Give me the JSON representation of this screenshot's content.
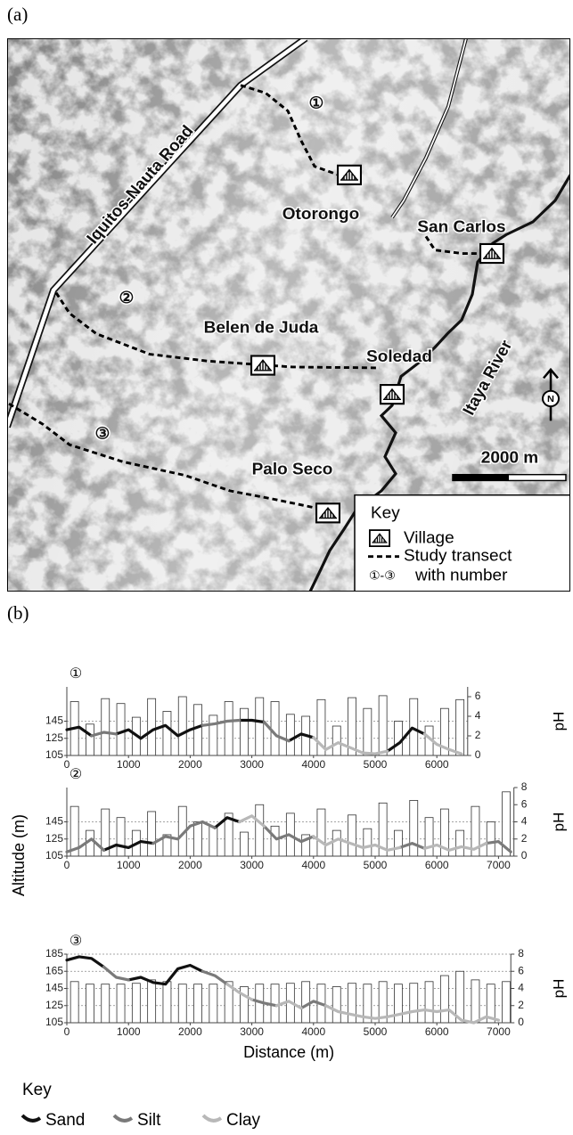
{
  "panel_a": {
    "label": "(a)",
    "map": {
      "road": "Iquitos-Nauta Road",
      "villages": [
        "Otorongo",
        "San Carlos",
        "Belen de Juda",
        "Soledad",
        "Palo Seco"
      ],
      "river": "Itaya River",
      "transects": [
        "①",
        "②",
        "③"
      ],
      "north": "N",
      "scale": "2000 m",
      "key": {
        "title": "Key",
        "village": "Village",
        "transect": "Study transect",
        "transect_numbers": "①-③",
        "transect_note": "with number"
      }
    }
  },
  "panel_b": {
    "label": "(b)",
    "ylabel": "Altitude (m)",
    "key": {
      "title": "Key",
      "items": [
        {
          "name": "Sand",
          "color": "#111111"
        },
        {
          "name": "Silt",
          "color": "#7a7a7a"
        },
        {
          "name": "Clay",
          "color": "#b8b8b8"
        }
      ]
    }
  },
  "chart_data": [
    {
      "type": "altitude-ph",
      "title": "①",
      "y2label": "pH",
      "xlim": [
        0,
        6500
      ],
      "xticks": [
        0,
        1000,
        2000,
        3000,
        4000,
        5000,
        6000
      ],
      "ylim": [
        105,
        185
      ],
      "yticks": [
        105,
        125,
        145
      ],
      "y2lim": [
        0,
        7
      ],
      "y2ticks": [
        0,
        2,
        4,
        6
      ],
      "grid": true,
      "x": [
        0,
        200,
        400,
        600,
        800,
        1000,
        1200,
        1400,
        1600,
        1800,
        2000,
        2200,
        2400,
        2600,
        2800,
        3000,
        3200,
        3400,
        3600,
        3800,
        4000,
        4200,
        4400,
        4600,
        4800,
        5000,
        5200,
        5400,
        5600,
        5800,
        6000,
        6200,
        6400
      ],
      "series": [
        {
          "values": [
            135,
            138,
            128,
            null,
            130,
            135,
            125,
            135,
            140,
            128,
            135,
            140,
            null,
            null,
            146,
            146,
            144,
            null,
            122,
            130,
            126,
            null,
            null,
            null,
            null,
            null,
            110,
            120,
            137,
            130,
            null,
            null,
            null
          ]
        },
        {
          "values": [
            null,
            null,
            128,
            132,
            130,
            null,
            null,
            null,
            null,
            null,
            null,
            140,
            142,
            145,
            146,
            null,
            144,
            128,
            122,
            null,
            null,
            null,
            null,
            null,
            null,
            null,
            null,
            null,
            null,
            null,
            null,
            null,
            null
          ]
        },
        {
          "values": [
            null,
            null,
            null,
            null,
            null,
            null,
            null,
            null,
            null,
            null,
            null,
            null,
            null,
            null,
            null,
            null,
            null,
            null,
            null,
            null,
            126,
            112,
            120,
            114,
            108,
            107,
            110,
            null,
            null,
            130,
            118,
            112,
            107
          ]
        }
      ],
      "ph_bars": {
        "axis": "y2",
        "x": [
          125,
          375,
          625,
          875,
          1125,
          1375,
          1625,
          1875,
          2125,
          2375,
          2625,
          2875,
          3125,
          3375,
          3625,
          3875,
          4125,
          4375,
          4625,
          4875,
          5125,
          5375,
          5625,
          5875,
          6125,
          6375
        ],
        "values": [
          5.5,
          3.2,
          5.8,
          5.3,
          3.9,
          5.8,
          4.5,
          6.0,
          5.2,
          4.1,
          5.5,
          4.8,
          5.9,
          5.5,
          4.2,
          4.0,
          5.7,
          3.0,
          5.9,
          4.8,
          6.1,
          3.5,
          5.8,
          3.0,
          4.8,
          5.7
        ]
      }
    },
    {
      "type": "altitude-ph",
      "title": "②",
      "y2label": "pH",
      "xlim": [
        0,
        7250
      ],
      "xticks": [
        0,
        1000,
        2000,
        3000,
        4000,
        5000,
        6000,
        7000
      ],
      "ylim": [
        105,
        185
      ],
      "yticks": [
        105,
        125,
        145
      ],
      "y2lim": [
        0,
        8
      ],
      "y2ticks": [
        0,
        2,
        4,
        6,
        8
      ],
      "grid": true,
      "x": [
        0,
        200,
        400,
        600,
        800,
        1000,
        1200,
        1400,
        1600,
        1800,
        2000,
        2200,
        2400,
        2600,
        2800,
        3000,
        3200,
        3400,
        3600,
        3800,
        4000,
        4200,
        4400,
        4600,
        4800,
        5000,
        5200,
        5400,
        5600,
        5800,
        6000,
        6200,
        6400,
        6600,
        6800,
        7000,
        7200
      ],
      "series": [
        {
          "values": [
            null,
            null,
            null,
            112,
            118,
            115,
            122,
            120,
            null,
            null,
            null,
            null,
            138,
            150,
            145,
            null,
            null,
            null,
            null,
            null,
            null,
            null,
            null,
            null,
            null,
            null,
            null,
            null,
            null,
            null,
            null,
            null,
            null,
            null,
            null,
            null,
            null
          ]
        },
        {
          "values": [
            110,
            115,
            125,
            112,
            null,
            null,
            null,
            120,
            128,
            125,
            140,
            145,
            138,
            null,
            null,
            null,
            140,
            125,
            130,
            122,
            128,
            null,
            null,
            null,
            null,
            null,
            null,
            115,
            120,
            114,
            null,
            null,
            null,
            null,
            120,
            122,
            110
          ]
        },
        {
          "values": [
            null,
            null,
            null,
            null,
            null,
            null,
            null,
            null,
            null,
            null,
            null,
            null,
            null,
            null,
            145,
            152,
            140,
            null,
            null,
            null,
            128,
            118,
            125,
            120,
            115,
            118,
            112,
            115,
            null,
            114,
            118,
            112,
            116,
            113,
            120,
            null,
            null
          ]
        }
      ],
      "ph_bars": {
        "axis": "y2",
        "x": [
          125,
          375,
          625,
          875,
          1125,
          1375,
          1625,
          1875,
          2125,
          2375,
          2625,
          2875,
          3125,
          3375,
          3625,
          3875,
          4125,
          4375,
          4625,
          4875,
          5125,
          5375,
          5625,
          5875,
          6125,
          6375,
          6625,
          6875,
          7125
        ],
        "values": [
          5.8,
          3.0,
          5.5,
          4.5,
          3.0,
          5.2,
          2.5,
          5.8,
          4.0,
          3.5,
          5.0,
          2.8,
          6.0,
          3.5,
          5.0,
          2.5,
          5.5,
          3.0,
          4.8,
          3.2,
          6.2,
          3.0,
          6.5,
          4.5,
          5.5,
          3.0,
          5.8,
          4.0,
          7.5
        ]
      }
    },
    {
      "type": "altitude-ph",
      "title": "③",
      "y2label": "pH",
      "xlabel": "Distance (m)",
      "xlim": [
        0,
        7200
      ],
      "xticks": [
        0,
        1000,
        2000,
        3000,
        4000,
        5000,
        6000,
        7000
      ],
      "ylim": [
        105,
        185
      ],
      "yticks": [
        105,
        125,
        145,
        165,
        185
      ],
      "y2lim": [
        0,
        8
      ],
      "y2ticks": [
        0,
        2,
        4,
        6,
        8
      ],
      "grid": true,
      "x": [
        0,
        200,
        400,
        600,
        800,
        1000,
        1200,
        1400,
        1600,
        1800,
        2000,
        2200,
        2400,
        2600,
        2800,
        3000,
        3200,
        3400,
        3600,
        3800,
        4000,
        4200,
        4400,
        4600,
        4800,
        5000,
        5200,
        5400,
        5600,
        5800,
        6000,
        6200,
        6400,
        6600,
        6800,
        7000
      ],
      "series": [
        {
          "values": [
            178,
            182,
            180,
            170,
            null,
            155,
            158,
            152,
            150,
            168,
            172,
            165,
            null,
            null,
            null,
            null,
            null,
            null,
            null,
            null,
            null,
            null,
            null,
            null,
            null,
            null,
            null,
            null,
            null,
            null,
            null,
            null,
            null,
            null,
            null,
            null
          ]
        },
        {
          "values": [
            null,
            null,
            null,
            170,
            158,
            155,
            null,
            null,
            null,
            null,
            null,
            165,
            160,
            150,
            null,
            132,
            128,
            125,
            null,
            122,
            130,
            125,
            null,
            null,
            null,
            null,
            null,
            null,
            null,
            null,
            null,
            null,
            null,
            null,
            null,
            null
          ]
        },
        {
          "values": [
            null,
            null,
            null,
            null,
            null,
            null,
            null,
            null,
            null,
            null,
            null,
            null,
            null,
            150,
            140,
            132,
            null,
            125,
            130,
            122,
            null,
            125,
            118,
            115,
            112,
            110,
            112,
            115,
            118,
            120,
            118,
            120,
            108,
            105,
            112,
            108
          ]
        }
      ],
      "ph_bars": {
        "axis": "y2",
        "x": [
          125,
          375,
          625,
          875,
          1125,
          1375,
          1625,
          1875,
          2125,
          2375,
          2625,
          2875,
          3125,
          3375,
          3625,
          3875,
          4125,
          4375,
          4625,
          4875,
          5125,
          5375,
          5625,
          5875,
          6125,
          6375,
          6625,
          6875,
          7125
        ],
        "values": [
          4.8,
          4.5,
          4.5,
          4.5,
          4.6,
          5.0,
          4.8,
          4.5,
          4.5,
          4.5,
          4.8,
          4.2,
          4.5,
          4.5,
          4.6,
          4.8,
          4.5,
          4.2,
          4.6,
          4.5,
          4.8,
          4.5,
          4.6,
          4.8,
          5.5,
          6.0,
          5.0,
          4.5,
          4.8
        ]
      }
    }
  ]
}
